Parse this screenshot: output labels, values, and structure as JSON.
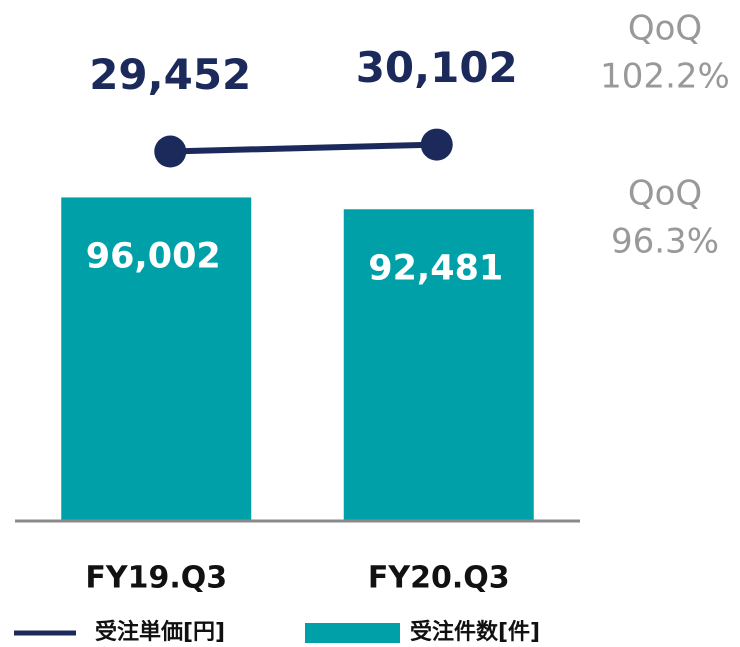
{
  "chart_data": {
    "type": "bar",
    "categories": [
      "FY19.Q3",
      "FY20.Q3"
    ],
    "series": [
      {
        "name": "受注件数[件]",
        "type": "bar",
        "color": "#00a0a8",
        "values": [
          96002,
          92481
        ],
        "value_labels": [
          "96,002",
          "92,481"
        ]
      },
      {
        "name": "受注単価[円]",
        "type": "line",
        "axis": "y2",
        "color": "#1b2a5a",
        "values": [
          29452,
          30102
        ],
        "value_labels": [
          "29,452",
          "30,102"
        ]
      }
    ],
    "ylim": [
      0,
      100000
    ],
    "y2lim": [
      28000,
      31000
    ],
    "annotations": [
      [
        "QoQ",
        "102.2%"
      ],
      [
        "QoQ",
        "96.3%"
      ]
    ]
  }
}
